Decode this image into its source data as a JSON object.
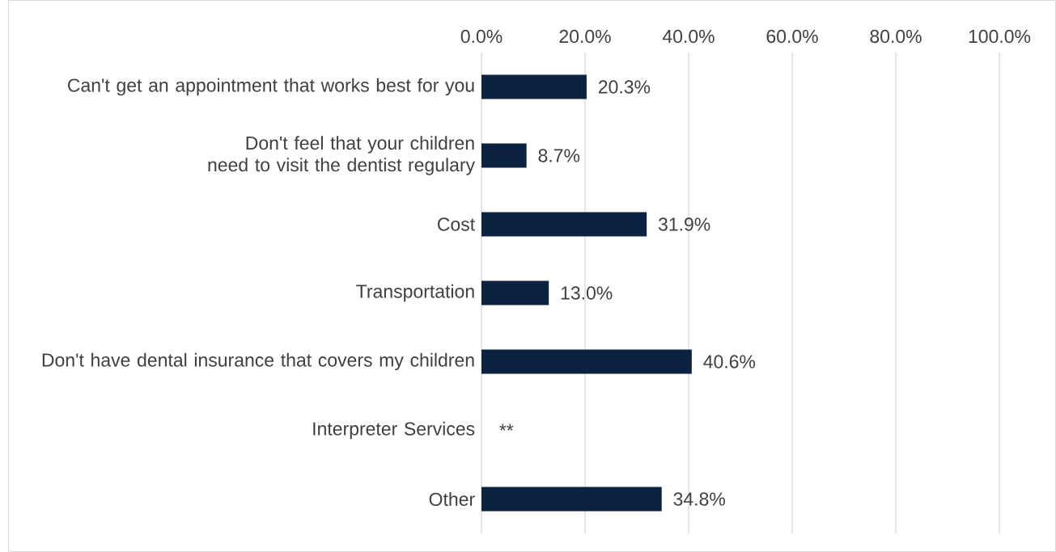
{
  "chart_data": {
    "type": "bar",
    "orientation": "horizontal",
    "categories": [
      "Can't get an appointment that works best for you",
      "Don't feel that your children need to visit the dentist regulary",
      "Cost",
      "Transportation",
      "Don't have dental insurance that covers my children",
      "Interpreter Services",
      "Other"
    ],
    "values": [
      20.3,
      8.7,
      31.9,
      13.0,
      40.6,
      null,
      34.8
    ],
    "value_labels": [
      "20.3%",
      "8.7%",
      "31.9%",
      "13.0%",
      "40.6%",
      "**",
      "34.8%"
    ],
    "color": "#0c2240",
    "xlim": [
      0,
      100
    ],
    "xticks": [
      {
        "value": 0,
        "label": "0.0%"
      },
      {
        "value": 20,
        "label": "20.0%"
      },
      {
        "value": 40,
        "label": "40.0%"
      },
      {
        "value": 60,
        "label": "60.0%"
      },
      {
        "value": 80,
        "label": "80.0%"
      },
      {
        "value": 100,
        "label": "100.0%"
      }
    ],
    "grid": "x"
  }
}
